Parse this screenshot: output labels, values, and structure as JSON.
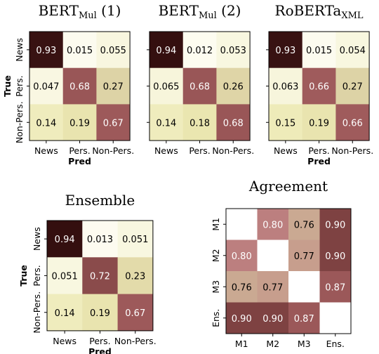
{
  "chart_data": [
    {
      "type": "heatmap",
      "title": "BERT",
      "title_sub": "Mul",
      "title_suffix": " (1)",
      "xlabel": "Pred",
      "ylabel": "True",
      "x_categories": [
        "News",
        "Pers.",
        "Non-Pers."
      ],
      "y_categories": [
        "News",
        "Pers.",
        "Non-Pers."
      ],
      "values": [
        [
          0.93,
          0.015,
          0.055
        ],
        [
          0.047,
          0.68,
          0.27
        ],
        [
          0.14,
          0.19,
          0.67
        ]
      ],
      "labels": [
        [
          "0.93",
          "0.015",
          "0.055"
        ],
        [
          "0.047",
          "0.68",
          "0.27"
        ],
        [
          "0.14",
          "0.19",
          "0.67"
        ]
      ]
    },
    {
      "type": "heatmap",
      "title": "BERT",
      "title_sub": "Mul",
      "title_suffix": " (2)",
      "xlabel": "",
      "ylabel": "",
      "x_categories": [
        "News",
        "Pers.",
        "Non-Pers."
      ],
      "y_categories": [],
      "values": [
        [
          0.94,
          0.012,
          0.053
        ],
        [
          0.065,
          0.68,
          0.26
        ],
        [
          0.14,
          0.18,
          0.68
        ]
      ],
      "labels": [
        [
          "0.94",
          "0.012",
          "0.053"
        ],
        [
          "0.065",
          "0.68",
          "0.26"
        ],
        [
          "0.14",
          "0.18",
          "0.68"
        ]
      ]
    },
    {
      "type": "heatmap",
      "title": "RoBERTa",
      "title_sub": "XML",
      "title_suffix": "",
      "xlabel": "Pred",
      "ylabel": "",
      "x_categories": [
        "News",
        "Pers.",
        "Non-Pers."
      ],
      "y_categories": [],
      "values": [
        [
          0.93,
          0.015,
          0.054
        ],
        [
          0.063,
          0.66,
          0.27
        ],
        [
          0.15,
          0.19,
          0.66
        ]
      ],
      "labels": [
        [
          "0.93",
          "0.015",
          "0.054"
        ],
        [
          "0.063",
          "0.66",
          "0.27"
        ],
        [
          "0.15",
          "0.19",
          "0.66"
        ]
      ]
    },
    {
      "type": "heatmap",
      "title": "Ensemble",
      "title_sub": "",
      "title_suffix": "",
      "xlabel": "Pred",
      "ylabel": "True",
      "x_categories": [
        "News",
        "Pers.",
        "Non-Pers."
      ],
      "y_categories": [
        "News",
        "Pers.",
        "Non-Pers."
      ],
      "values": [
        [
          0.94,
          0.013,
          0.051
        ],
        [
          0.051,
          0.72,
          0.23
        ],
        [
          0.14,
          0.19,
          0.67
        ]
      ],
      "labels": [
        [
          "0.94",
          "0.013",
          "0.051"
        ],
        [
          "0.051",
          "0.72",
          "0.23"
        ],
        [
          "0.14",
          "0.19",
          "0.67"
        ]
      ]
    },
    {
      "type": "heatmap",
      "title": "Agreement",
      "title_sub": "",
      "title_suffix": "",
      "xlabel": "",
      "ylabel": "",
      "x_categories": [
        "M1",
        "M2",
        "M3",
        "Ens."
      ],
      "y_categories": [
        "M1",
        "M2",
        "M3",
        "Ens."
      ],
      "values": [
        [
          null,
          0.8,
          0.76,
          0.9
        ],
        [
          0.8,
          null,
          0.77,
          0.9
        ],
        [
          0.76,
          0.77,
          null,
          0.87
        ],
        [
          0.9,
          0.9,
          0.87,
          null
        ]
      ],
      "labels": [
        [
          "",
          "0.80",
          "0.76",
          "0.90"
        ],
        [
          "0.80",
          "",
          "0.77",
          "0.90"
        ],
        [
          "0.76",
          "0.77",
          "",
          "0.87"
        ],
        [
          "0.90",
          "0.90",
          "0.87",
          ""
        ]
      ]
    }
  ],
  "colormap": [
    "#fefdf5",
    "#ece9b2",
    "#d4c59e",
    "#bc7f7f",
    "#9e5a5b",
    "#5e2a2a",
    "#1c0000"
  ]
}
